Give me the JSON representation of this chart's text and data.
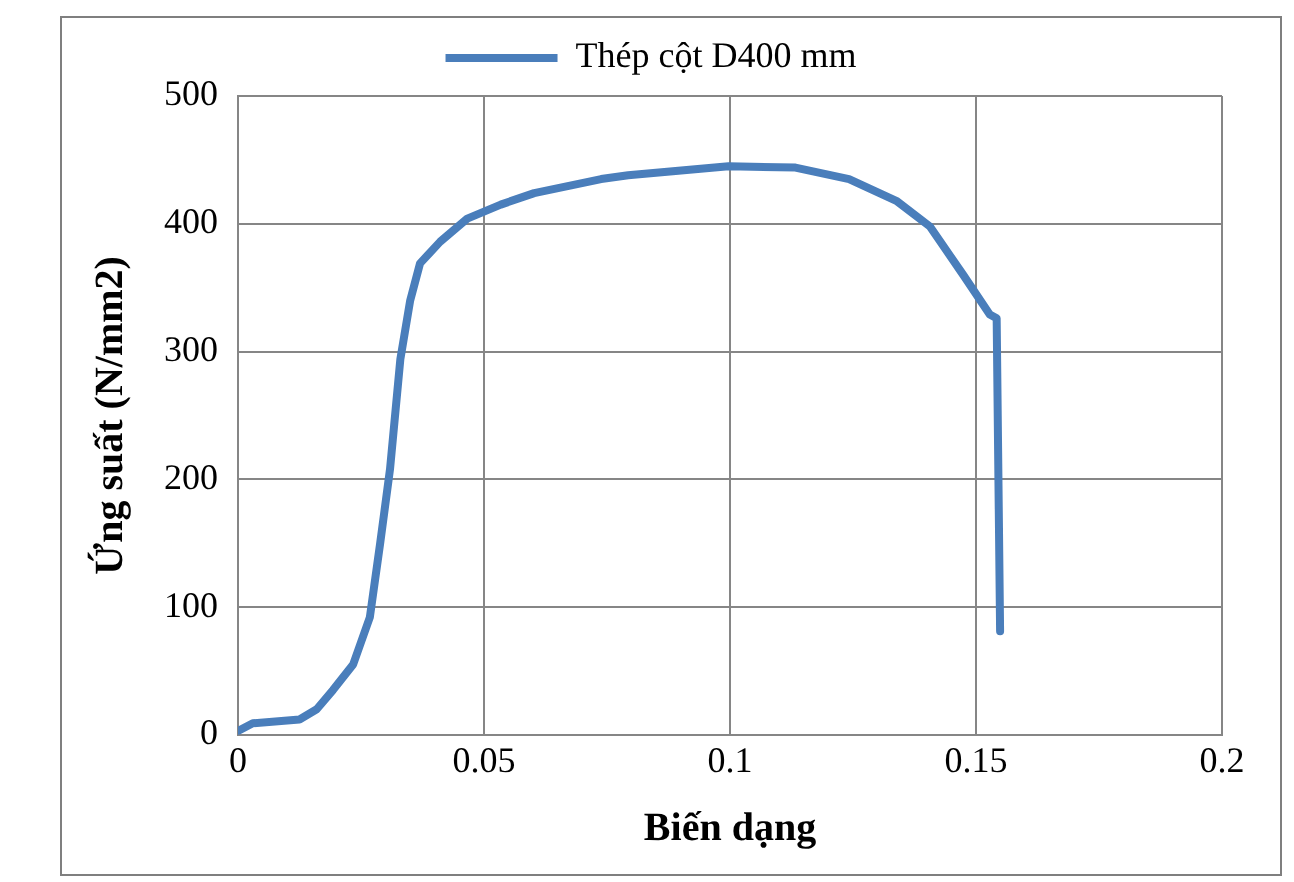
{
  "chart_data": {
    "type": "line",
    "xlabel": "Biến dạng",
    "ylabel": "Ứng suất (N/mm2)",
    "xlim": [
      0,
      0.2
    ],
    "xticks": [
      0,
      0.05,
      0.1,
      0.15,
      0.2
    ],
    "ylim": [
      0,
      500
    ],
    "yticks": [
      0,
      100,
      200,
      300,
      400,
      500
    ],
    "grid": true,
    "legend": "top",
    "marker": "none",
    "line_style": "solid",
    "series": [
      {
        "name": "Thép cột D400 mm",
        "color": "#4a7ebb",
        "x": [
          0,
          0.003,
          0.0125,
          0.016,
          0.0193,
          0.0234,
          0.0268,
          0.0289,
          0.0309,
          0.033,
          0.035,
          0.037,
          0.0411,
          0.0466,
          0.0534,
          0.0602,
          0.0738,
          0.0793,
          0.0997,
          0.1133,
          0.1242,
          0.1338,
          0.1406,
          0.1474,
          0.1528,
          0.1542,
          0.1549
        ],
        "values": [
          3,
          9,
          12,
          20,
          35,
          55,
          92,
          150,
          208,
          294,
          340,
          369,
          386,
          404,
          415,
          424,
          435,
          438,
          445,
          444,
          435,
          418,
          398,
          360,
          329,
          326,
          81
        ]
      }
    ]
  }
}
